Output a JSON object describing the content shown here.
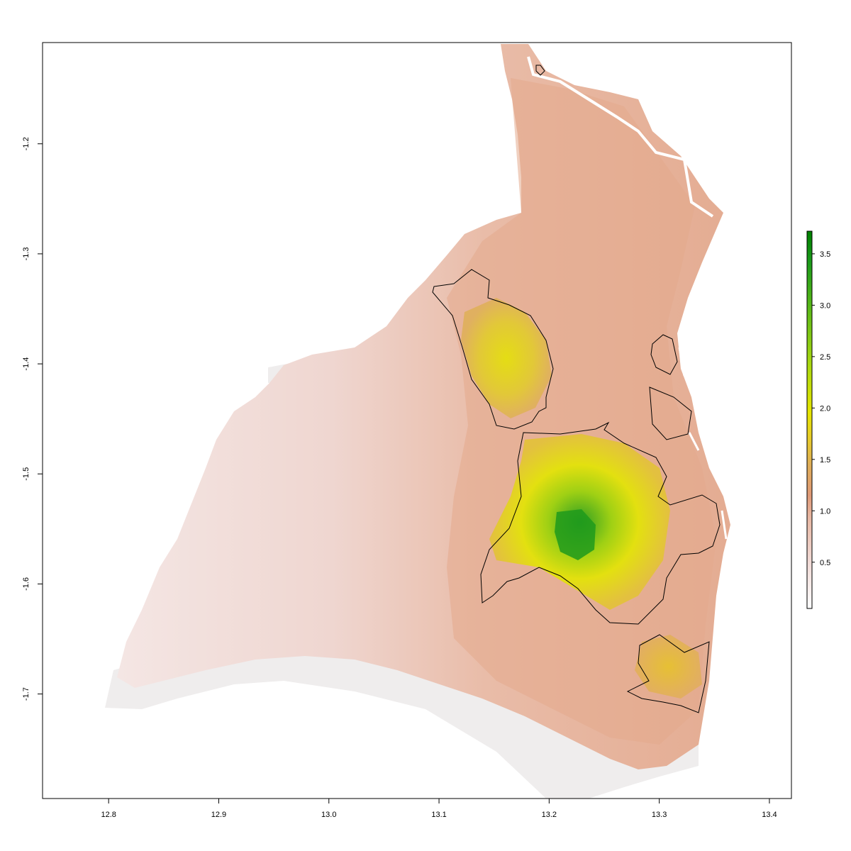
{
  "chart_data": {
    "type": "heatmap",
    "title": "",
    "xlabel": "",
    "ylabel": "",
    "xlim": [
      12.74,
      13.42
    ],
    "ylim": [
      -1.795,
      -1.108
    ],
    "x_ticks": [
      {
        "value": 12.8,
        "label": "12.8"
      },
      {
        "value": 12.9,
        "label": "12.9"
      },
      {
        "value": 13.0,
        "label": "13.0"
      },
      {
        "value": 13.1,
        "label": "13.1"
      },
      {
        "value": 13.2,
        "label": "13.2"
      },
      {
        "value": 13.3,
        "label": "13.3"
      },
      {
        "value": 13.4,
        "label": "13.4"
      }
    ],
    "y_ticks": [
      {
        "value": -1.2,
        "label": "-1.2"
      },
      {
        "value": -1.3,
        "label": "-1.3"
      },
      {
        "value": -1.4,
        "label": "-1.4"
      },
      {
        "value": -1.5,
        "label": "-1.5"
      },
      {
        "value": -1.6,
        "label": "-1.6"
      },
      {
        "value": -1.7,
        "label": "-1.7"
      }
    ],
    "legend": {
      "position": "right",
      "range": [
        0.05,
        3.72
      ],
      "ticks": [
        {
          "value": 0.5,
          "label": "0.5"
        },
        {
          "value": 1.0,
          "label": "1.0"
        },
        {
          "value": 1.5,
          "label": "1.5"
        },
        {
          "value": 2.0,
          "label": "2.0"
        },
        {
          "value": 2.5,
          "label": "2.5"
        },
        {
          "value": 3.0,
          "label": "3.0"
        },
        {
          "value": 3.5,
          "label": "3.5"
        }
      ],
      "colors": [
        "#ffffff",
        "#f2dcd8",
        "#e8b8a4",
        "#e09a78",
        "#e0ae58",
        "#e8cc2a",
        "#e6e600",
        "#a8d810",
        "#58b818",
        "#1a9a1a",
        "#008000"
      ]
    },
    "colors": {
      "nodata_band": "#efeded",
      "low": "#f3e3e0",
      "mid": "#e8b49c",
      "high": "#e2a682",
      "hot_yellow": "#e6e015",
      "hot_green": "#34a82a",
      "contour": "#000000"
    }
  }
}
